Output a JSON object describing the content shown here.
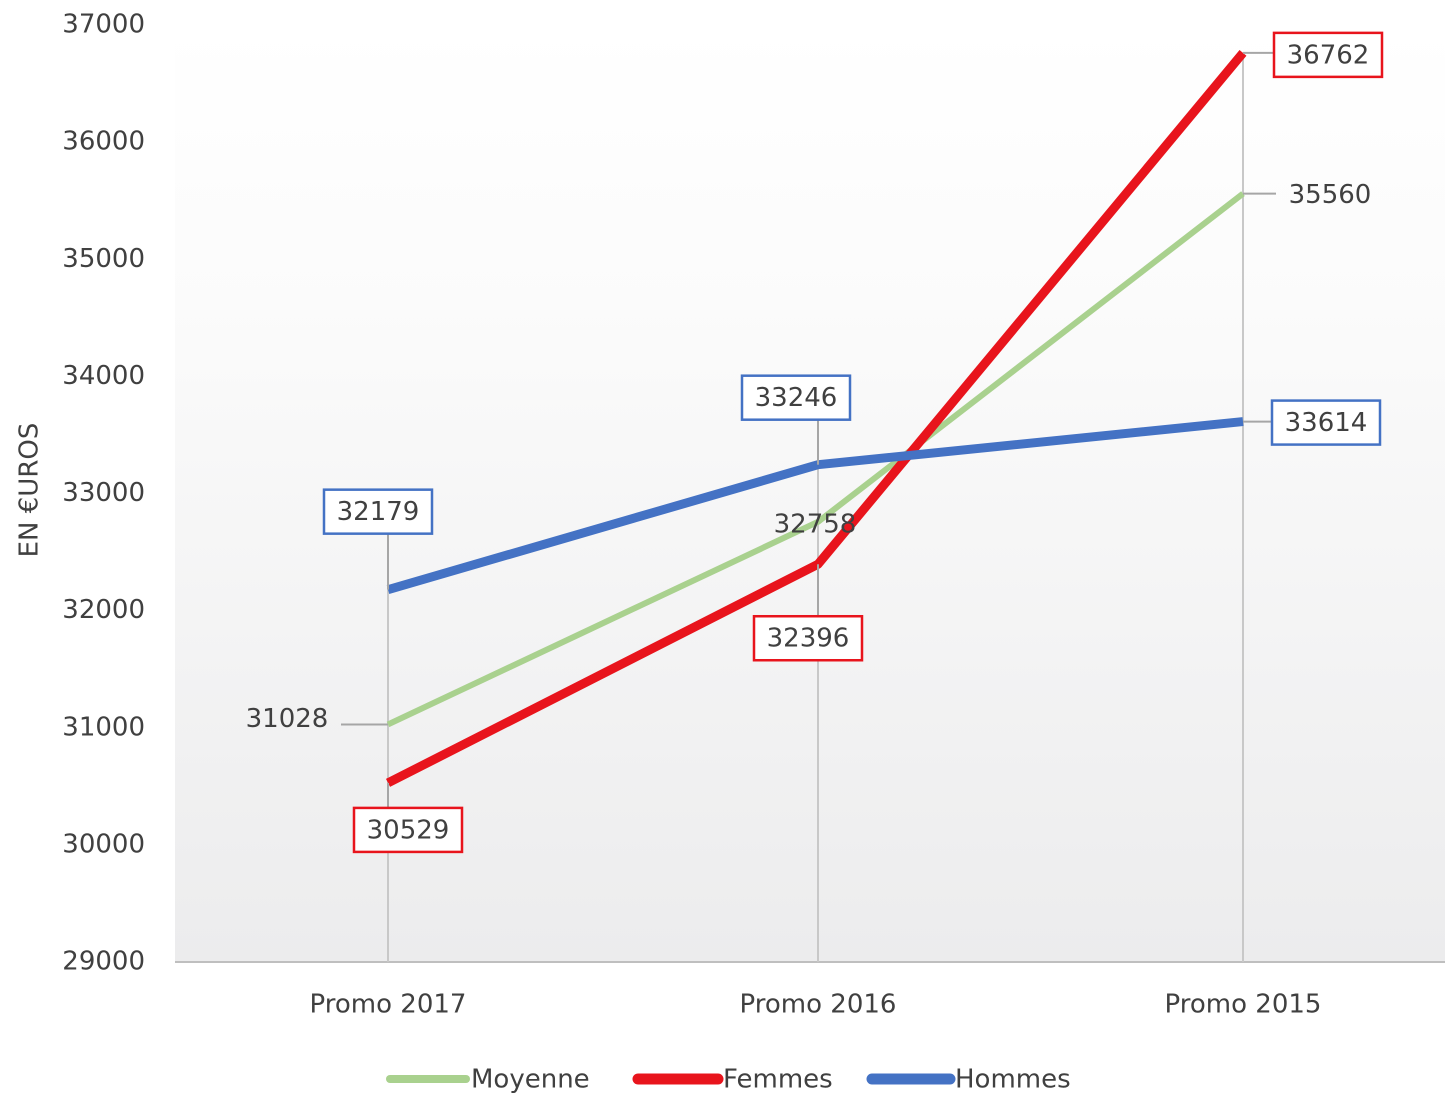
{
  "chart_data": {
    "type": "line",
    "y_label": "EN €UROS",
    "categories": [
      "Promo 2017",
      "Promo 2016",
      "Promo 2015"
    ],
    "series": [
      {
        "name": "Moyenne",
        "color": "#a9d18e",
        "values": [
          31028,
          32758,
          35560
        ]
      },
      {
        "name": "Femmes",
        "color": "#e8141c",
        "values": [
          30529,
          32396,
          36762
        ]
      },
      {
        "name": "Hommes",
        "color": "#4472c4",
        "values": [
          32179,
          33246,
          33614
        ]
      }
    ],
    "ylim": [
      29000,
      37000
    ],
    "yticks": [
      29000,
      30000,
      31000,
      32000,
      33000,
      34000,
      35000,
      36000,
      37000
    ],
    "legend": "bottom"
  }
}
